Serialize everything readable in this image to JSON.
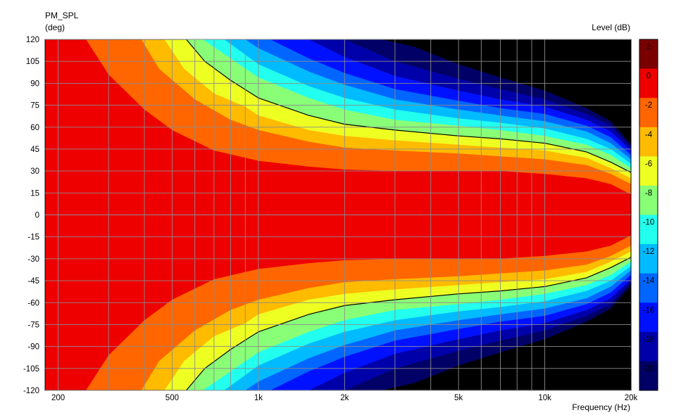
{
  "chart_data": {
    "type": "heatmap",
    "title": "PM_SPL",
    "ylabel": "(deg)",
    "xlabel": "Frequency  (Hz)",
    "colorbar_label": "Level  (dB)",
    "x_scale": "log",
    "xlim": [
      180,
      20000
    ],
    "ylim": [
      -120,
      120
    ],
    "x_ticks": [
      {
        "value": 200,
        "label": "200"
      },
      {
        "value": 500,
        "label": "500"
      },
      {
        "value": 1000,
        "label": "1k"
      },
      {
        "value": 2000,
        "label": "2k"
      },
      {
        "value": 5000,
        "label": "5k"
      },
      {
        "value": 10000,
        "label": "10k"
      },
      {
        "value": 20000,
        "label": "20k"
      }
    ],
    "y_ticks": [
      120,
      105,
      90,
      75,
      60,
      45,
      30,
      15,
      0,
      -15,
      -30,
      -45,
      -60,
      -75,
      -90,
      -105,
      -120
    ],
    "color_levels": [
      {
        "min": 0,
        "max": 2,
        "color": "#7a0000",
        "label": "2"
      },
      {
        "min": -2,
        "max": 0,
        "color": "#ee0000",
        "label": "0"
      },
      {
        "min": -4,
        "max": -2,
        "color": "#ff6600",
        "label": "-2"
      },
      {
        "min": -6,
        "max": -4,
        "color": "#ffbb00",
        "label": "-4"
      },
      {
        "min": -8,
        "max": -6,
        "color": "#eeff22",
        "label": "-6"
      },
      {
        "min": -10,
        "max": -8,
        "color": "#88ff77",
        "label": "-8"
      },
      {
        "min": -12,
        "max": -10,
        "color": "#22ffee",
        "label": "-10"
      },
      {
        "min": -14,
        "max": -12,
        "color": "#00bbff",
        "label": "-12"
      },
      {
        "min": -16,
        "max": -14,
        "color": "#0066ff",
        "label": "-14"
      },
      {
        "min": -18,
        "max": -16,
        "color": "#0011ff",
        "label": "-16"
      },
      {
        "min": -20,
        "max": -18,
        "color": "#0000aa",
        "label": "-18"
      },
      {
        "min": -22,
        "max": -20,
        "color": "#000066",
        "label": "-20"
      }
    ],
    "below_range_color": "#000000",
    "contour_level_db": -6,
    "contours": [
      {
        "level_db": 0,
        "angle_deg": [
          {
            "freq": 180,
            "angle": 125
          },
          {
            "freq": 250,
            "angle": 120
          },
          {
            "freq": 300,
            "angle": 96
          },
          {
            "freq": 400,
            "angle": 72
          },
          {
            "freq": 500,
            "angle": 58
          },
          {
            "freq": 700,
            "angle": 44
          },
          {
            "freq": 1000,
            "angle": 37
          },
          {
            "freq": 1500,
            "angle": 33
          },
          {
            "freq": 2000,
            "angle": 31
          },
          {
            "freq": 3000,
            "angle": 30
          },
          {
            "freq": 5000,
            "angle": 30
          },
          {
            "freq": 7000,
            "angle": 30
          },
          {
            "freq": 10000,
            "angle": 28
          },
          {
            "freq": 14000,
            "angle": 25
          },
          {
            "freq": 17000,
            "angle": 21
          },
          {
            "freq": 20000,
            "angle": 14
          }
        ]
      },
      {
        "level_db": -2,
        "angle_deg": [
          {
            "freq": 180,
            "angle": 125
          },
          {
            "freq": 390,
            "angle": 120
          },
          {
            "freq": 450,
            "angle": 100
          },
          {
            "freq": 600,
            "angle": 79
          },
          {
            "freq": 800,
            "angle": 65
          },
          {
            "freq": 1000,
            "angle": 58
          },
          {
            "freq": 1500,
            "angle": 50
          },
          {
            "freq": 2000,
            "angle": 46
          },
          {
            "freq": 3000,
            "angle": 44
          },
          {
            "freq": 5000,
            "angle": 42
          },
          {
            "freq": 7000,
            "angle": 40
          },
          {
            "freq": 10000,
            "angle": 38
          },
          {
            "freq": 14000,
            "angle": 34
          },
          {
            "freq": 17000,
            "angle": 28
          },
          {
            "freq": 20000,
            "angle": 21
          }
        ]
      },
      {
        "level_db": -4,
        "angle_deg": [
          {
            "freq": 180,
            "angle": 125
          },
          {
            "freq": 470,
            "angle": 120
          },
          {
            "freq": 550,
            "angle": 100
          },
          {
            "freq": 700,
            "angle": 83
          },
          {
            "freq": 900,
            "angle": 74
          },
          {
            "freq": 1000,
            "angle": 68
          },
          {
            "freq": 1500,
            "angle": 58
          },
          {
            "freq": 2000,
            "angle": 54
          },
          {
            "freq": 3000,
            "angle": 51
          },
          {
            "freq": 5000,
            "angle": 48
          },
          {
            "freq": 7000,
            "angle": 46
          },
          {
            "freq": 10000,
            "angle": 44
          },
          {
            "freq": 14000,
            "angle": 39
          },
          {
            "freq": 17000,
            "angle": 32
          },
          {
            "freq": 20000,
            "angle": 25
          }
        ]
      },
      {
        "level_db": -6,
        "angle_deg": [
          {
            "freq": 180,
            "angle": 125
          },
          {
            "freq": 560,
            "angle": 120
          },
          {
            "freq": 650,
            "angle": 105
          },
          {
            "freq": 800,
            "angle": 92
          },
          {
            "freq": 1000,
            "angle": 80
          },
          {
            "freq": 1500,
            "angle": 68
          },
          {
            "freq": 2000,
            "angle": 62
          },
          {
            "freq": 3000,
            "angle": 58
          },
          {
            "freq": 5000,
            "angle": 54
          },
          {
            "freq": 7000,
            "angle": 52
          },
          {
            "freq": 10000,
            "angle": 49
          },
          {
            "freq": 14000,
            "angle": 43
          },
          {
            "freq": 17000,
            "angle": 36
          },
          {
            "freq": 20000,
            "angle": 29
          }
        ]
      },
      {
        "level_db": -8,
        "angle_deg": [
          {
            "freq": 180,
            "angle": 125
          },
          {
            "freq": 640,
            "angle": 120
          },
          {
            "freq": 800,
            "angle": 107
          },
          {
            "freq": 1000,
            "angle": 94
          },
          {
            "freq": 1500,
            "angle": 80
          },
          {
            "freq": 2000,
            "angle": 72
          },
          {
            "freq": 3000,
            "angle": 65
          },
          {
            "freq": 5000,
            "angle": 61
          },
          {
            "freq": 7000,
            "angle": 58
          },
          {
            "freq": 10000,
            "angle": 54
          },
          {
            "freq": 14000,
            "angle": 48
          },
          {
            "freq": 17000,
            "angle": 41
          },
          {
            "freq": 20000,
            "angle": 32
          }
        ]
      },
      {
        "level_db": -10,
        "angle_deg": [
          {
            "freq": 180,
            "angle": 125
          },
          {
            "freq": 760,
            "angle": 120
          },
          {
            "freq": 1000,
            "angle": 103
          },
          {
            "freq": 1500,
            "angle": 88
          },
          {
            "freq": 2000,
            "angle": 80
          },
          {
            "freq": 3000,
            "angle": 72
          },
          {
            "freq": 5000,
            "angle": 66
          },
          {
            "freq": 7000,
            "angle": 63
          },
          {
            "freq": 10000,
            "angle": 59
          },
          {
            "freq": 14000,
            "angle": 52
          },
          {
            "freq": 17000,
            "angle": 45
          },
          {
            "freq": 20000,
            "angle": 35
          }
        ]
      },
      {
        "level_db": -12,
        "angle_deg": [
          {
            "freq": 180,
            "angle": 125
          },
          {
            "freq": 900,
            "angle": 120
          },
          {
            "freq": 1000,
            "angle": 114
          },
          {
            "freq": 1500,
            "angle": 98
          },
          {
            "freq": 2000,
            "angle": 89
          },
          {
            "freq": 3000,
            "angle": 79
          },
          {
            "freq": 5000,
            "angle": 72
          },
          {
            "freq": 7000,
            "angle": 68
          },
          {
            "freq": 10000,
            "angle": 64
          },
          {
            "freq": 14000,
            "angle": 57
          },
          {
            "freq": 17000,
            "angle": 49
          },
          {
            "freq": 20000,
            "angle": 38
          }
        ]
      },
      {
        "level_db": -14,
        "angle_deg": [
          {
            "freq": 180,
            "angle": 125
          },
          {
            "freq": 1100,
            "angle": 120
          },
          {
            "freq": 1500,
            "angle": 107
          },
          {
            "freq": 2000,
            "angle": 97
          },
          {
            "freq": 3000,
            "angle": 86
          },
          {
            "freq": 5000,
            "angle": 78
          },
          {
            "freq": 7000,
            "angle": 73
          },
          {
            "freq": 10000,
            "angle": 69
          },
          {
            "freq": 14000,
            "angle": 61
          },
          {
            "freq": 17000,
            "angle": 53
          },
          {
            "freq": 20000,
            "angle": 41
          }
        ]
      },
      {
        "level_db": -16,
        "angle_deg": [
          {
            "freq": 180,
            "angle": 125
          },
          {
            "freq": 1500,
            "angle": 120
          },
          {
            "freq": 2000,
            "angle": 108
          },
          {
            "freq": 3000,
            "angle": 95
          },
          {
            "freq": 5000,
            "angle": 85
          },
          {
            "freq": 7000,
            "angle": 79
          },
          {
            "freq": 10000,
            "angle": 74
          },
          {
            "freq": 14000,
            "angle": 65
          },
          {
            "freq": 17000,
            "angle": 57
          },
          {
            "freq": 20000,
            "angle": 44
          }
        ]
      },
      {
        "level_db": -18,
        "angle_deg": [
          {
            "freq": 180,
            "angle": 125
          },
          {
            "freq": 2000,
            "angle": 120
          },
          {
            "freq": 3000,
            "angle": 105
          },
          {
            "freq": 5000,
            "angle": 93
          },
          {
            "freq": 7000,
            "angle": 86
          },
          {
            "freq": 10000,
            "angle": 79
          },
          {
            "freq": 14000,
            "angle": 69
          },
          {
            "freq": 17000,
            "angle": 61
          },
          {
            "freq": 20000,
            "angle": 46
          }
        ]
      },
      {
        "level_db": -20,
        "angle_deg": [
          {
            "freq": 180,
            "angle": 125
          },
          {
            "freq": 2700,
            "angle": 120
          },
          {
            "freq": 3500,
            "angle": 115
          },
          {
            "freq": 5000,
            "angle": 103
          },
          {
            "freq": 7000,
            "angle": 94
          },
          {
            "freq": 10000,
            "angle": 85
          },
          {
            "freq": 14000,
            "angle": 73
          },
          {
            "freq": 17000,
            "angle": 64
          },
          {
            "freq": 20000,
            "angle": 48
          }
        ]
      },
      {
        "level_db": -22,
        "angle_deg": [
          {
            "freq": 180,
            "angle": 125
          },
          {
            "freq": 4000,
            "angle": 120
          },
          {
            "freq": 5000,
            "angle": 111
          },
          {
            "freq": 7000,
            "angle": 101
          },
          {
            "freq": 10000,
            "angle": 90
          },
          {
            "freq": 14000,
            "angle": 77
          },
          {
            "freq": 17000,
            "angle": 67
          },
          {
            "freq": 20000,
            "angle": 50
          }
        ]
      }
    ],
    "grid": true
  }
}
